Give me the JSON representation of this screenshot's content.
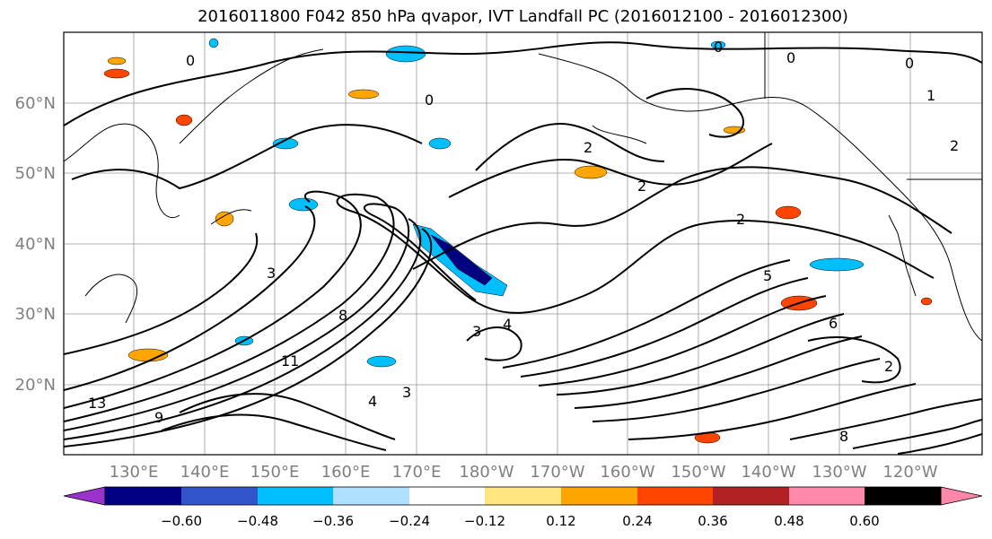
{
  "title": "2016011800 F042 850 hPa qvapor, IVT Landfall PC (2016012100 - 2016012300)",
  "lat_ticks": [
    "60°N",
    "50°N",
    "40°N",
    "30°N",
    "20°N"
  ],
  "lon_ticks": [
    "130°E",
    "140°E",
    "150°E",
    "160°E",
    "170°E",
    "180°W",
    "170°W",
    "160°W",
    "150°W",
    "140°W",
    "130°W",
    "120°W"
  ],
  "colorbar": {
    "colors": [
      "#9933cc",
      "#000080",
      "#3355cc",
      "#00bfff",
      "#b0e0ff",
      "#ffffff",
      "#ffe680",
      "#ffa500",
      "#ff4500",
      "#b22222",
      "#ff88aa"
    ],
    "labels": [
      "−0.60",
      "−0.48",
      "−0.36",
      "−0.24",
      "−0.12",
      "0.12",
      "0.24",
      "0.36",
      "0.48",
      "0.60"
    ]
  },
  "contour_labels": [
    "0",
    "0",
    "0",
    "0",
    "0",
    "1",
    "2",
    "2",
    "2",
    "2",
    "3",
    "3",
    "4",
    "5",
    "6",
    "8",
    "8",
    "9",
    "11",
    "13",
    "2",
    "3",
    "4"
  ]
}
